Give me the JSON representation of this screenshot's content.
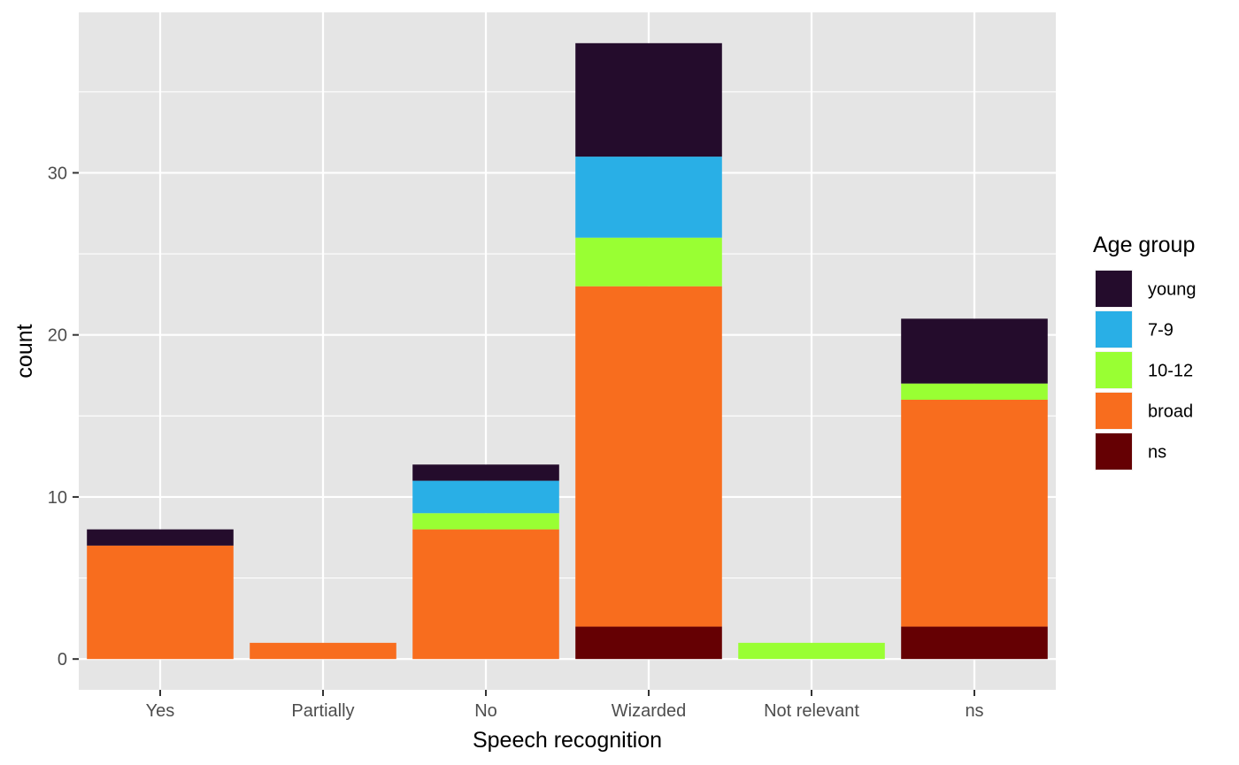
{
  "chart_data": {
    "type": "bar",
    "stacked": true,
    "title": "",
    "xlabel": "Speech recognition",
    "ylabel": "count",
    "categories": [
      "Yes",
      "Partially",
      "No",
      "Wizarded",
      "Not relevant",
      "ns"
    ],
    "ylim": [
      -1.9,
      39.9
    ],
    "yticks": [
      0,
      10,
      20,
      30
    ],
    "grid": true,
    "legend": {
      "title": "Age group",
      "position": "right"
    },
    "series": [
      {
        "name": "young",
        "color": "#240c2c",
        "values": [
          1,
          0,
          1,
          7,
          0,
          4
        ]
      },
      {
        "name": "7-9",
        "color": "#29afe6",
        "values": [
          0,
          0,
          2,
          5,
          0,
          0
        ]
      },
      {
        "name": "10-12",
        "color": "#99ff33",
        "values": [
          0,
          0,
          1,
          3,
          1,
          1
        ]
      },
      {
        "name": "broad",
        "color": "#f86d1e",
        "values": [
          7,
          1,
          8,
          21,
          0,
          14
        ]
      },
      {
        "name": "ns",
        "color": "#650003",
        "values": [
          0,
          0,
          0,
          2,
          0,
          2
        ]
      }
    ],
    "colors": {
      "panel_background": "#e5e5e5",
      "grid_line": "#ffffff"
    }
  }
}
